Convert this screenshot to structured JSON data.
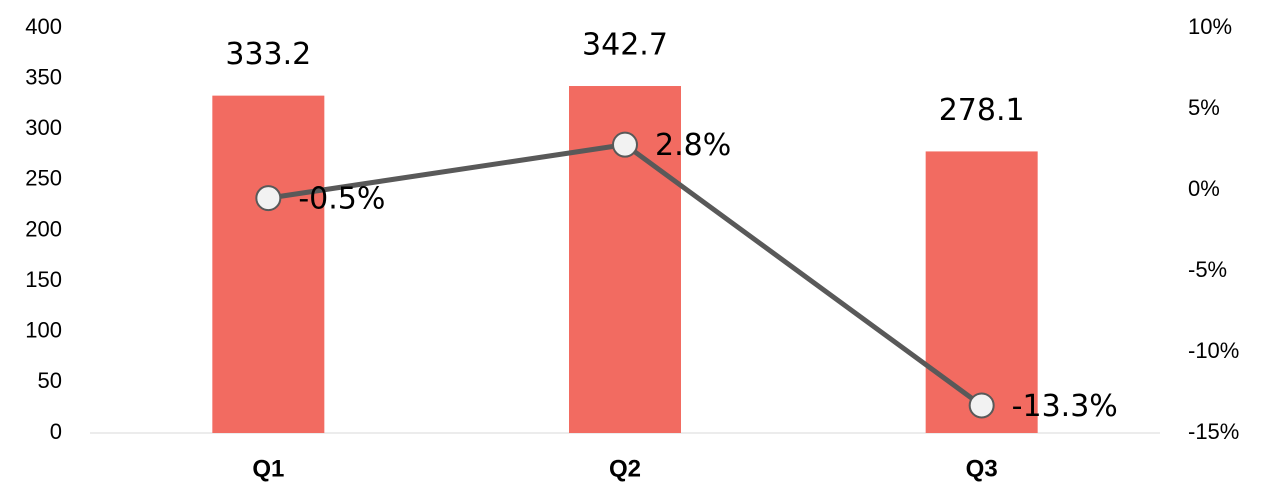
{
  "chart_data": {
    "type": "bar",
    "categories": [
      "Q1",
      "Q2",
      "Q3"
    ],
    "series": [
      {
        "type": "bar",
        "color": "#f26b61",
        "values": [
          333.2,
          342.7,
          278.1
        ]
      },
      {
        "type": "line",
        "axis": "y2",
        "color": "#595959",
        "values": [
          -0.5,
          2.8,
          -13.3
        ],
        "value_labels": [
          "-0.5%",
          "2.8%",
          "-13.3%"
        ]
      }
    ],
    "ylim": [
      0,
      400
    ],
    "yticks": [
      0,
      50,
      100,
      150,
      200,
      250,
      300,
      350,
      400
    ],
    "y2lim": [
      -15,
      10
    ],
    "y2ticks": [
      {
        "value": -15,
        "label": "-15%"
      },
      {
        "value": -10,
        "label": "-10%"
      },
      {
        "value": -5,
        "label": "-5%"
      },
      {
        "value": 0,
        "label": "0%"
      },
      {
        "value": 5,
        "label": "5%"
      },
      {
        "value": 10,
        "label": "10%"
      }
    ]
  }
}
